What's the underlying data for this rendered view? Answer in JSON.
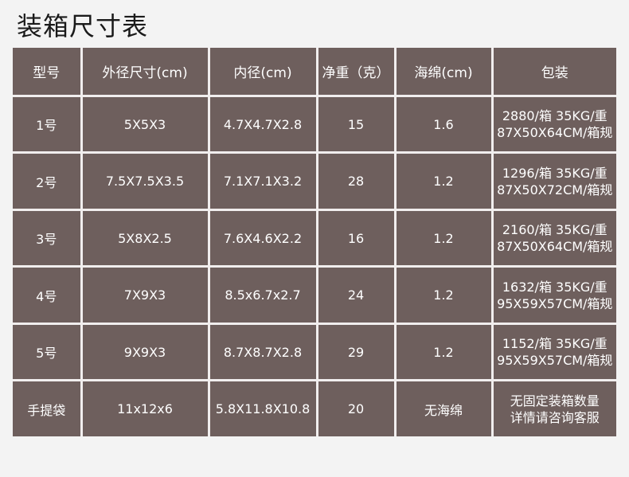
{
  "title": "装箱尺寸表",
  "headers": [
    "型号",
    "外径尺寸(cm)",
    "内径(cm)",
    "净重（克）",
    "海绵(cm)",
    "包装"
  ],
  "rows": [
    {
      "model": "1号",
      "outer": "5X5X3",
      "inner": "4.7X4.7X2.8",
      "weight": "15",
      "sponge": "1.6",
      "pack1": "2880/箱 35KG/重",
      "pack2": "87X50X64CM/箱规"
    },
    {
      "model": "2号",
      "outer": "7.5X7.5X3.5",
      "inner": "7.1X7.1X3.2",
      "weight": "28",
      "sponge": "1.2",
      "pack1": "1296/箱 35KG/重",
      "pack2": "87X50X72CM/箱规"
    },
    {
      "model": "3号",
      "outer": "5X8X2.5",
      "inner": "7.6X4.6X2.2",
      "weight": "16",
      "sponge": "1.2",
      "pack1": "2160/箱 35KG/重",
      "pack2": "87X50X64CM/箱规"
    },
    {
      "model": "4号",
      "outer": "7X9X3",
      "inner": "8.5x6.7x2.7",
      "weight": "24",
      "sponge": "1.2",
      "pack1": "1632/箱 35KG/重",
      "pack2": "95X59X57CM/箱规"
    },
    {
      "model": "5号",
      "outer": "9X9X3",
      "inner": "8.7X8.7X2.8",
      "weight": "29",
      "sponge": "1.2",
      "pack1": "1152/箱 35KG/重",
      "pack2": "95X59X57CM/箱规"
    },
    {
      "model": "手提袋",
      "outer": "11x12x6",
      "inner": "5.8X11.8X10.8",
      "weight": "20",
      "sponge": "无海绵",
      "pack1": "无固定装箱数量",
      "pack2": "详情请咨询客服"
    }
  ]
}
